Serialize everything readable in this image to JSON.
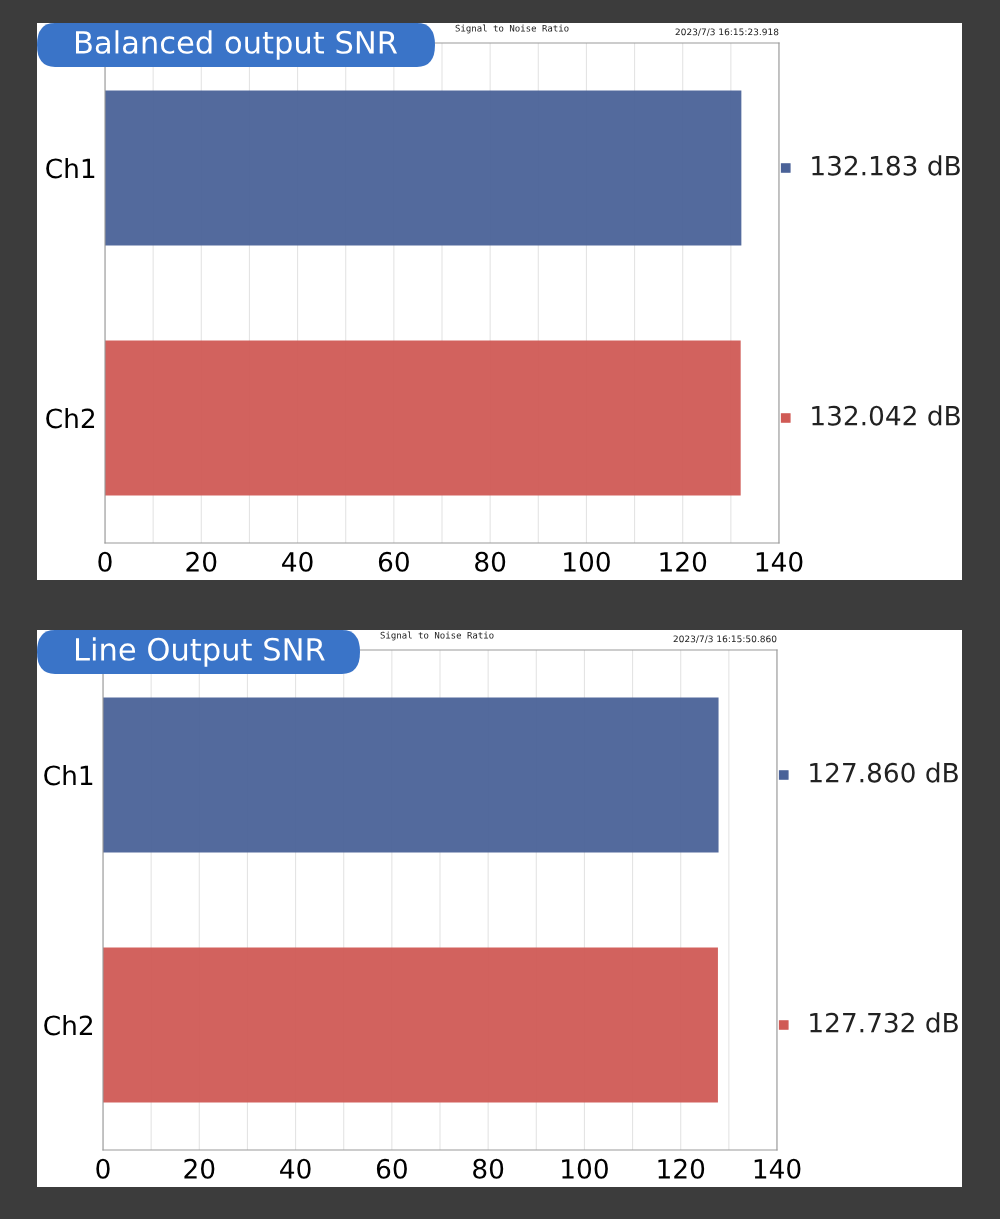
{
  "chart_data": [
    {
      "type": "bar",
      "orientation": "horizontal",
      "title": "Balanced output SNR",
      "subtitle": "Signal to Noise Ratio",
      "annotations": [
        "2023/7/3 16:15:23.918"
      ],
      "categories": [
        "Ch1",
        "Ch2"
      ],
      "values": [
        132.183,
        132.042
      ],
      "colors": [
        "#4a6298",
        "#d05a55"
      ],
      "value_labels": [
        "132.183 dB",
        "132.042 dB"
      ],
      "xlim": [
        0,
        140
      ],
      "xticks": [
        0,
        {
          "value": 10,
          "label": null
        },
        20,
        {
          "value": 30,
          "label": null
        },
        40,
        {
          "value": 50,
          "label": null
        },
        60,
        {
          "value": 70,
          "label": null
        },
        80,
        {
          "value": 90,
          "label": null
        },
        100,
        {
          "value": 110,
          "label": null
        },
        120,
        {
          "value": 130,
          "label": null
        },
        140
      ],
      "grid": "x"
    },
    {
      "type": "bar",
      "orientation": "horizontal",
      "title": "Line Output SNR",
      "subtitle": "Signal to Noise Ratio",
      "annotations": [
        "2023/7/3 16:15:50.860"
      ],
      "categories": [
        "Ch1",
        "Ch2"
      ],
      "values": [
        127.86,
        127.732
      ],
      "colors": [
        "#4a6298",
        "#d05a55"
      ],
      "value_labels": [
        "127.860 dB",
        "127.732 dB"
      ],
      "xlim": [
        0,
        140
      ],
      "xticks": [
        0,
        {
          "value": 10,
          "label": null
        },
        20,
        {
          "value": 30,
          "label": null
        },
        40,
        {
          "value": 50,
          "label": null
        },
        60,
        {
          "value": 70,
          "label": null
        },
        80,
        {
          "value": 90,
          "label": null
        },
        100,
        {
          "value": 110,
          "label": null
        },
        120,
        {
          "value": 130,
          "label": null
        },
        140
      ],
      "grid": "x"
    }
  ]
}
